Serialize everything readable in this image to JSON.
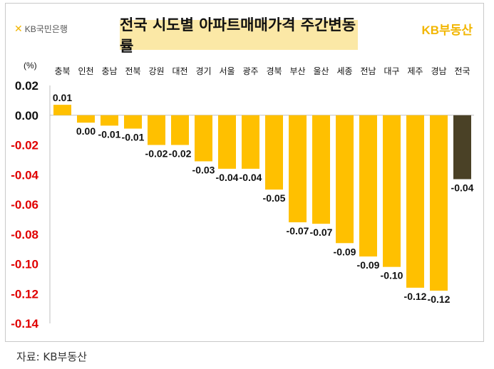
{
  "logo_left": {
    "mark": "✕",
    "text": "KB국민은행"
  },
  "logo_right": {
    "text": "KB부동산"
  },
  "source_text": "자료: KB부동산",
  "colors": {
    "bar": "#ffc000",
    "highlight": "#4a4126",
    "negative_tick": "#e00000",
    "positive_tick": "#111111"
  },
  "chart_data": {
    "type": "bar",
    "title": "전국 시도별 아파트매매가격 주간변동률",
    "unit": "(%)",
    "categories": [
      "충북",
      "인천",
      "충남",
      "전북",
      "강원",
      "대전",
      "경기",
      "서울",
      "광주",
      "경북",
      "부산",
      "울산",
      "세종",
      "전남",
      "대구",
      "제주",
      "경남",
      "전국"
    ],
    "values": [
      0.007,
      -0.005,
      -0.007,
      -0.009,
      -0.02,
      -0.02,
      -0.031,
      -0.036,
      -0.036,
      -0.05,
      -0.072,
      -0.073,
      -0.086,
      -0.095,
      -0.102,
      -0.116,
      -0.118,
      -0.043
    ],
    "value_labels": [
      "0.01",
      "0.00",
      "-0.01",
      "-0.01",
      "-0.02",
      "-0.02",
      "-0.03",
      "-0.04",
      "-0.04",
      "-0.05",
      "-0.07",
      "-0.07",
      "-0.09",
      "-0.09",
      "-0.10",
      "-0.12",
      "-0.12",
      "-0.04"
    ],
    "highlight_category": "전국",
    "yticks": [
      0.02,
      0.0,
      -0.02,
      -0.04,
      -0.06,
      -0.08,
      -0.1,
      -0.12,
      -0.14
    ],
    "ytick_labels": [
      "0.02",
      "0.00",
      "-0.02",
      "-0.04",
      "-0.06",
      "-0.08",
      "-0.10",
      "-0.12",
      "-0.14"
    ],
    "ylim": [
      -0.14,
      0.02
    ],
    "grid": false,
    "legend": "none"
  }
}
